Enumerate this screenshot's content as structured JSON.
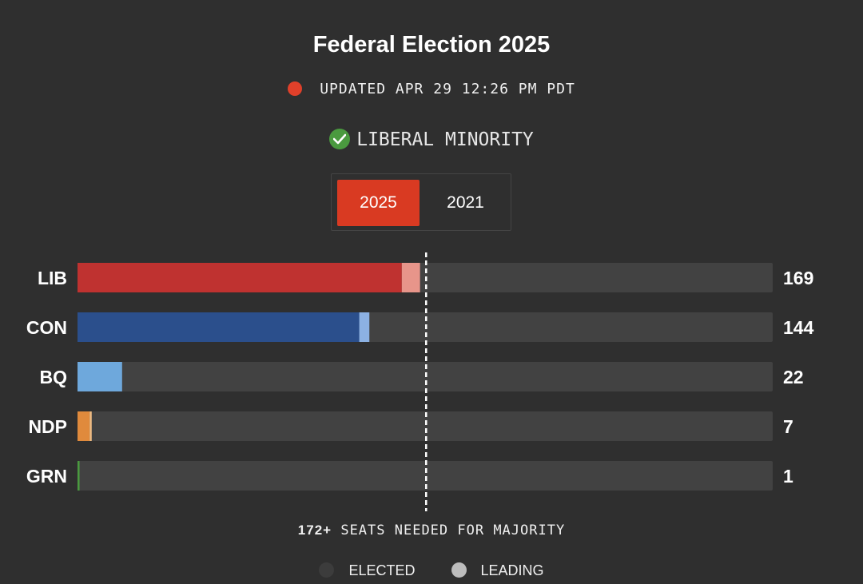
{
  "header": {
    "title": "Federal Election 2025",
    "updated": "UPDATED APR 29 12:26 PM PDT",
    "result": "LIBERAL MINORITY"
  },
  "toggle": {
    "options": [
      "2025",
      "2021"
    ],
    "selected": "2025"
  },
  "colors": {
    "live_dot": "#e0402a",
    "check": "#4a9a3f",
    "track": "#424242",
    "toggle_active": "#d93a22"
  },
  "chart_data": {
    "type": "bar",
    "orientation": "horizontal",
    "stacked": true,
    "categories": [
      "LIB",
      "CON",
      "BQ",
      "NDP",
      "GRN"
    ],
    "totals": [
      169,
      144,
      22,
      7,
      1
    ],
    "series": [
      {
        "name": "ELECTED",
        "values": [
          160,
          139,
          22,
          6,
          1
        ],
        "colors": [
          "#bf3230",
          "#2b4f8c",
          "#6ea8dc",
          "#e08a3c",
          "#4a9a3f"
        ]
      },
      {
        "name": "LEADING",
        "values": [
          9,
          5,
          0,
          1,
          0
        ],
        "colors": [
          "#e7958a",
          "#8cb1e3",
          "#a8cdee",
          "#f1bd84",
          "#8ec985"
        ]
      }
    ],
    "xlim": [
      0,
      343
    ],
    "majority_line": 172,
    "majority_label_value": "172+",
    "majority_label_text": "SEATS NEEDED FOR MAJORITY"
  },
  "legend": {
    "items": [
      {
        "label": "ELECTED",
        "color": "#3c3c3c"
      },
      {
        "label": "LEADING",
        "color": "#bdbdbd"
      }
    ]
  }
}
